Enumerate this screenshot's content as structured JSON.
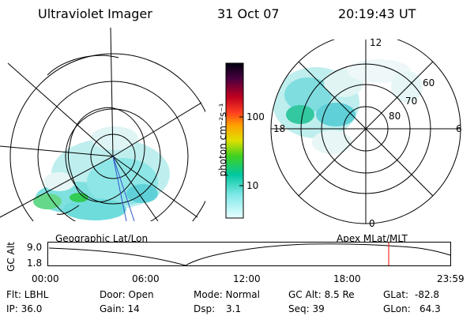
{
  "header": {
    "title": "Ultraviolet Imager",
    "date": "31 Oct 07",
    "time": "20:19:43 UT"
  },
  "colorbar": {
    "unit_label": "photon cm⁻²s⁻¹",
    "ticks": [
      "100",
      "10"
    ]
  },
  "polar_plot": {
    "mlt_labels": {
      "top": "12",
      "left": "18",
      "right": "6",
      "bottom": "0"
    },
    "lat_labels": [
      "60",
      "70",
      "80"
    ]
  },
  "orbit_panel": {
    "left_title": "Geographic Lat/Lon",
    "right_title": "Apex MLat/MLT",
    "axis_label": "GC Alt",
    "y_ticks": [
      "9.0",
      "1.8"
    ],
    "time_ticks": [
      "00:00",
      "06:00",
      "12:00",
      "18:00",
      "23:59"
    ],
    "current_time_color": "#ff0000"
  },
  "status": {
    "flt": "Flt: LBHL",
    "ip": "IP: 36.0",
    "door": "Door: Open",
    "gain": "Gain: 14",
    "mode": "Mode: Normal",
    "dsp_label": "Dsp:",
    "dsp_value": "3.1",
    "gc_alt": "GC Alt: 8.5 Re",
    "seq": "Seq: 39",
    "glat_label": "GLat:",
    "glat_value": "-82.8",
    "glon_label": "GLon:",
    "glon_value": "64.3"
  },
  "colors": {
    "aurora_cyan": "#7fe0e0",
    "aurora_green": "#33cc33",
    "aurora_blue": "#2aa8c8"
  }
}
